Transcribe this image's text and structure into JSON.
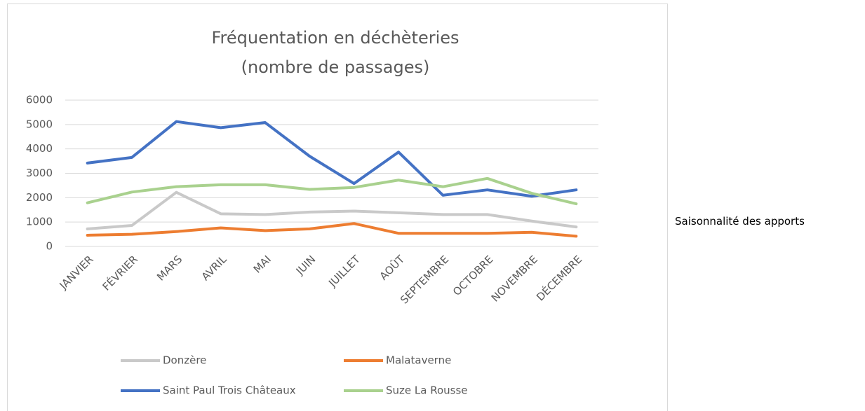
{
  "chart_data": {
    "type": "line",
    "title": [
      "Fréquentation en déchèteries",
      "(nombre de passages)"
    ],
    "categories": [
      "JANVIER",
      "FÉVRIER",
      "MARS",
      "AVRIL",
      "MAI",
      "JUIN",
      "JUILLET",
      "AOÛT",
      "SEPTEMBRE",
      "OCTOBRE",
      "NOVEMBRE",
      "DÉCEMBRE"
    ],
    "series": [
      {
        "name": "Donzère",
        "color": "#c9c9c9",
        "values": [
          720,
          860,
          2220,
          1340,
          1310,
          1410,
          1450,
          1380,
          1310,
          1310,
          1040,
          800
        ]
      },
      {
        "name": "Malataverne",
        "color": "#ed7d31",
        "values": [
          460,
          500,
          610,
          760,
          650,
          720,
          940,
          540,
          540,
          540,
          580,
          420
        ]
      },
      {
        "name": "Saint Paul Trois Châteaux",
        "color": "#4472c4",
        "values": [
          3420,
          3650,
          5120,
          4870,
          5080,
          3700,
          2580,
          3870,
          2100,
          2320,
          2060,
          2320
        ]
      },
      {
        "name": "Suze La Rousse",
        "color": "#a9d18e",
        "values": [
          1790,
          2230,
          2450,
          2530,
          2530,
          2340,
          2420,
          2720,
          2450,
          2790,
          2180,
          1750
        ]
      }
    ],
    "ylim": [
      0,
      6000
    ],
    "yticks": [
      0,
      1000,
      2000,
      3000,
      4000,
      5000,
      6000
    ],
    "grid": true,
    "legend": "bottom"
  },
  "side_text": "Saisonnalité des apports"
}
